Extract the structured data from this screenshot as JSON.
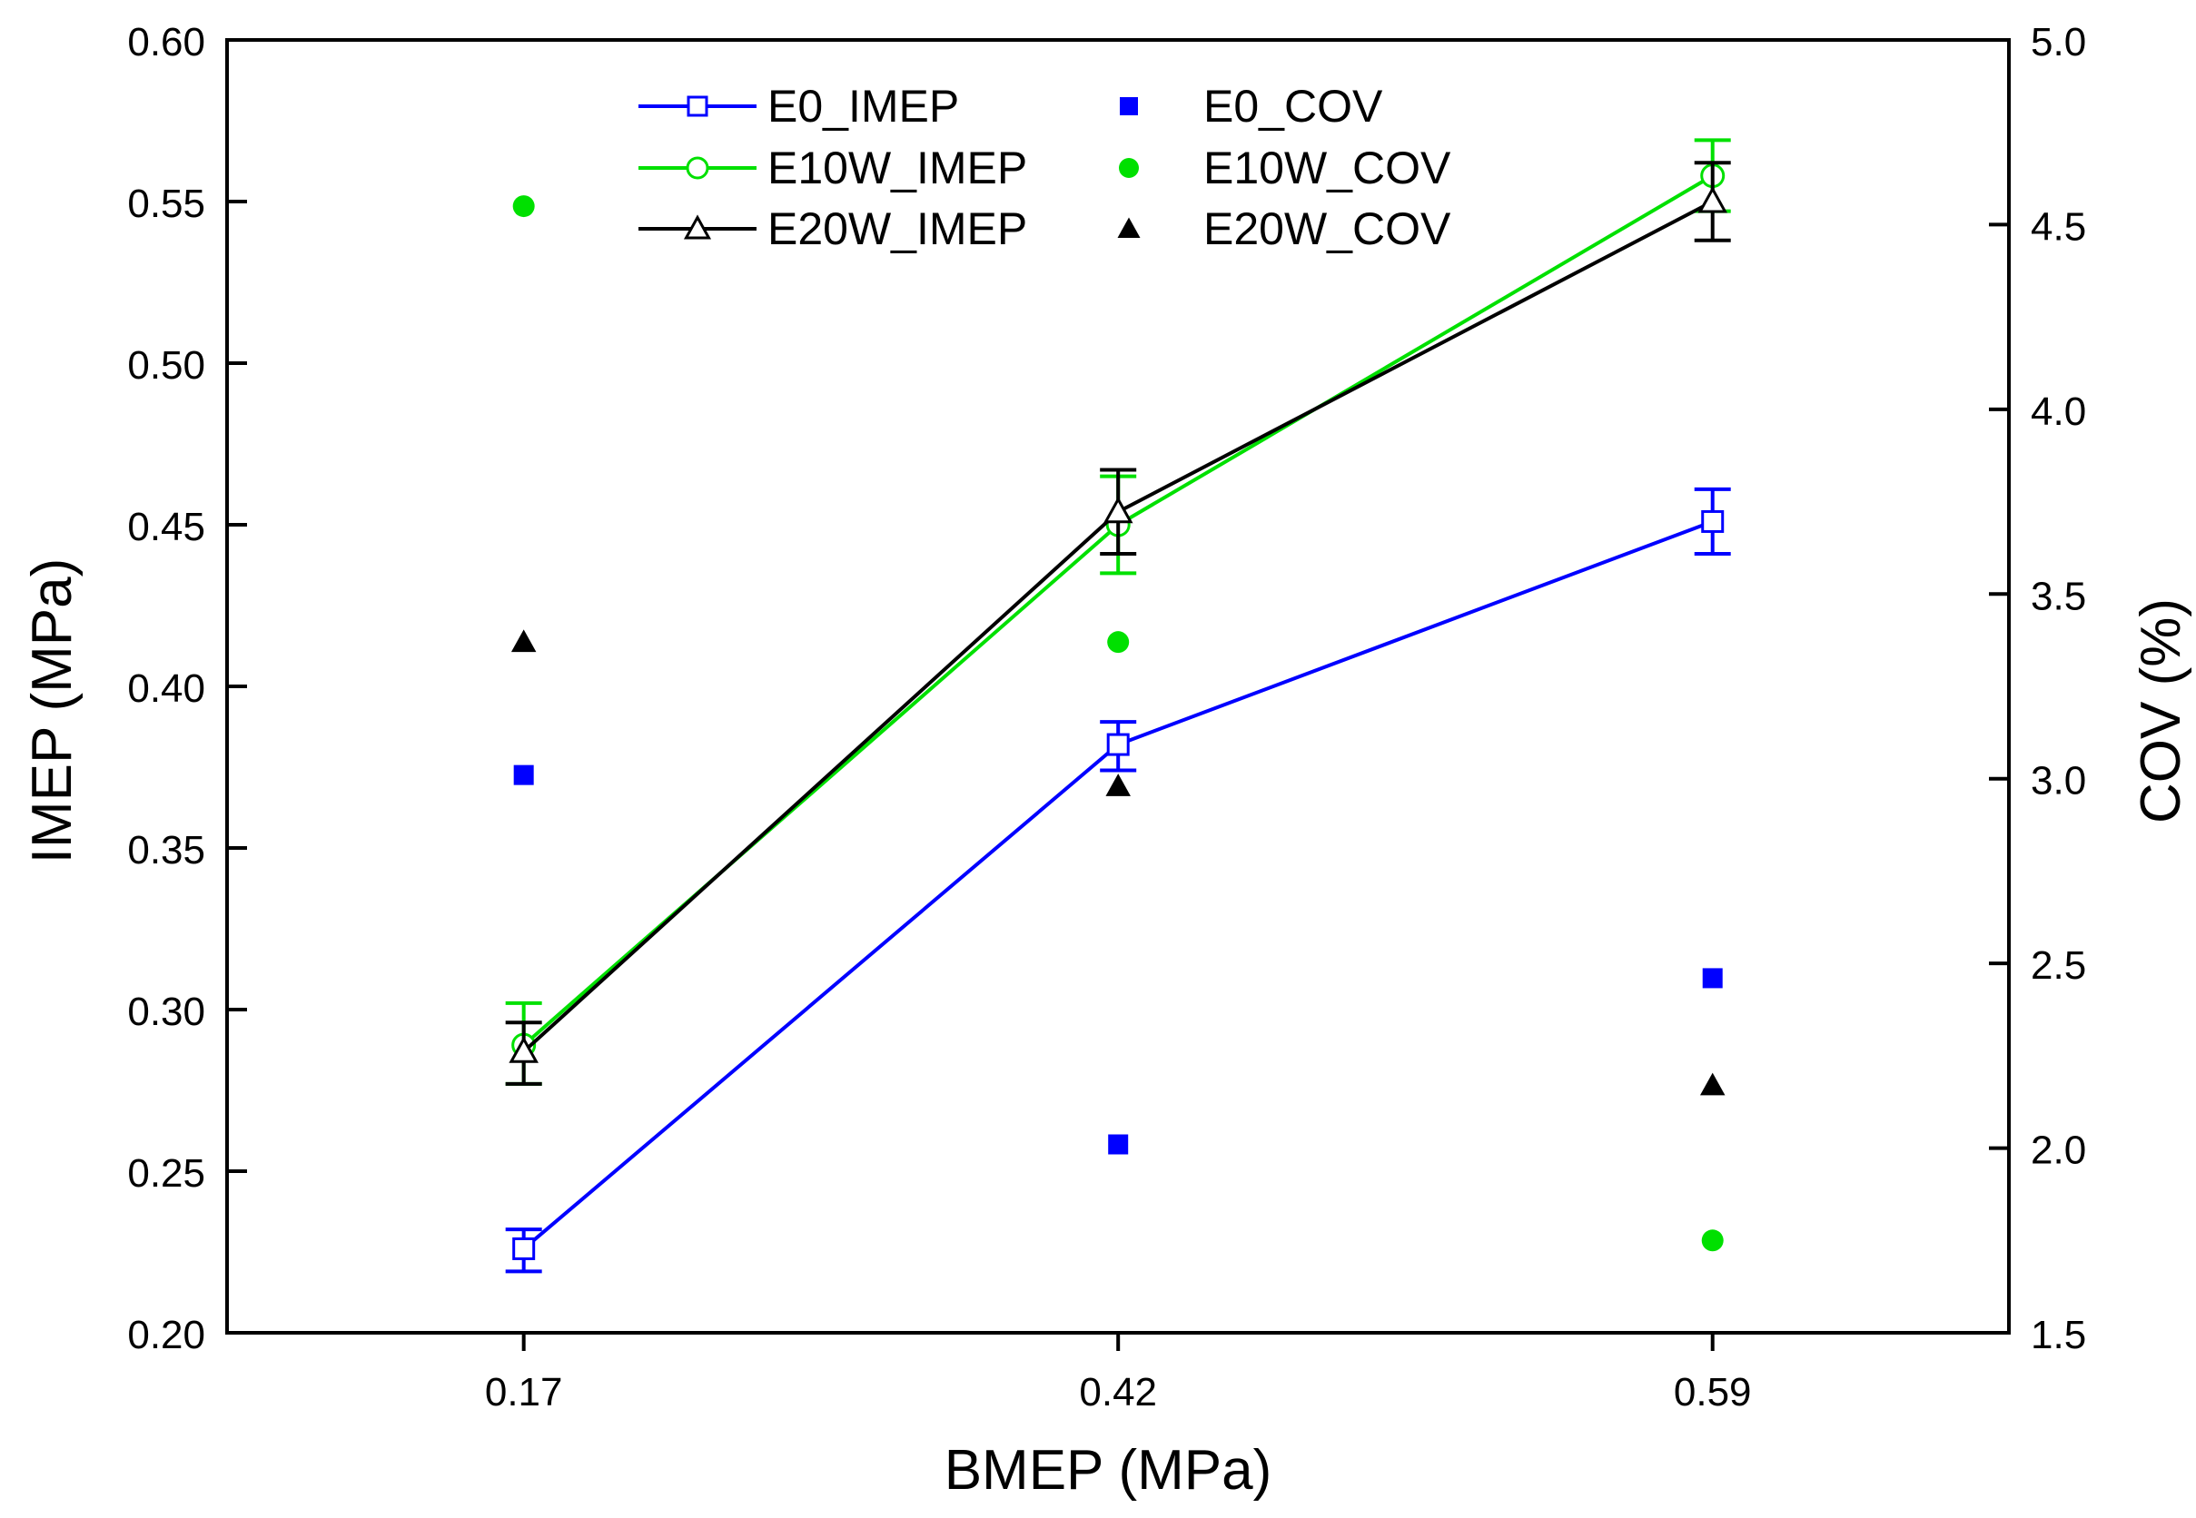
{
  "chart_data": {
    "type": "line",
    "title": "",
    "xlabel": "BMEP (MPa)",
    "ylabel": "IMEP (MPa)",
    "y2label": "COV (%)",
    "categories": [
      "0.17",
      "0.42",
      "0.59"
    ],
    "ylim": [
      0.2,
      0.6
    ],
    "y2lim": [
      1.5,
      5.0
    ],
    "yticks": [
      "0.20",
      "0.25",
      "0.30",
      "0.35",
      "0.40",
      "0.45",
      "0.50",
      "0.55",
      "0.60"
    ],
    "y2ticks": [
      "1.5",
      "2.0",
      "2.5",
      "3.0",
      "3.5",
      "4.0",
      "4.5",
      "5.0"
    ],
    "legend_position": "top",
    "series": [
      {
        "name": "E0_IMEP",
        "axis": "left",
        "kind": "line",
        "marker": "square-open",
        "color": "#0000ff",
        "values": [
          0.226,
          0.382,
          0.451
        ],
        "err_low": [
          0.219,
          0.374,
          0.441
        ],
        "err_high": [
          0.232,
          0.389,
          0.461
        ]
      },
      {
        "name": "E10W_IMEP",
        "axis": "left",
        "kind": "line",
        "marker": "circle-open",
        "color": "#00e000",
        "values": [
          0.289,
          0.45,
          0.558
        ],
        "err_low": [
          0.277,
          0.435,
          0.547
        ],
        "err_high": [
          0.302,
          0.465,
          0.569
        ]
      },
      {
        "name": "E20W_IMEP",
        "axis": "left",
        "kind": "line",
        "marker": "triangle-open",
        "color": "#000000",
        "values": [
          0.287,
          0.454,
          0.55
        ],
        "err_low": [
          0.277,
          0.441,
          0.538
        ],
        "err_high": [
          0.296,
          0.467,
          0.562
        ]
      },
      {
        "name": "E0_COV",
        "axis": "right",
        "kind": "scatter",
        "marker": "square-filled",
        "color": "#0000ff",
        "values": [
          3.01,
          2.01,
          2.46
        ]
      },
      {
        "name": "E10W_COV",
        "axis": "right",
        "kind": "scatter",
        "marker": "circle-filled",
        "color": "#00e000",
        "values": [
          4.55,
          3.37,
          1.75
        ]
      },
      {
        "name": "E20W_COV",
        "axis": "right",
        "kind": "scatter",
        "marker": "triangle-filled",
        "color": "#000000",
        "values": [
          3.37,
          2.98,
          2.17
        ]
      }
    ]
  }
}
